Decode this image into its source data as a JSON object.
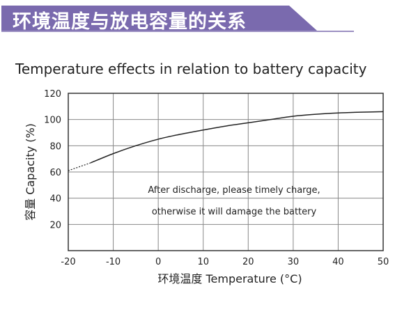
{
  "header": {
    "title": "环境温度与放电容量的关系",
    "banner_color": "#7a6aae"
  },
  "chart_data": {
    "type": "line",
    "title": "Temperature effects in relation to battery capacity",
    "xlabel": "环境温度 Temperature (°C)",
    "ylabel": "容量 Capacity (%)",
    "xlim": [
      -20,
      50
    ],
    "ylim": [
      0,
      120
    ],
    "xticks": [
      "-20",
      "-10",
      "0",
      "10",
      "20",
      "30",
      "40",
      "50"
    ],
    "yticks": [
      "20",
      "40",
      "60",
      "80",
      "100",
      "120"
    ],
    "grid": true,
    "x": [
      -20,
      -15,
      -10,
      -5,
      0,
      5,
      10,
      15,
      20,
      25,
      30,
      35,
      40,
      45,
      50
    ],
    "y": [
      61,
      67,
      74,
      80,
      85,
      88.8,
      92,
      95,
      97.5,
      100,
      102.5,
      104,
      105,
      105.6,
      106
    ],
    "dashed_until_x": -15,
    "annotation": [
      "After discharge, please timely charge,",
      "otherwise it will damage the battery"
    ]
  }
}
